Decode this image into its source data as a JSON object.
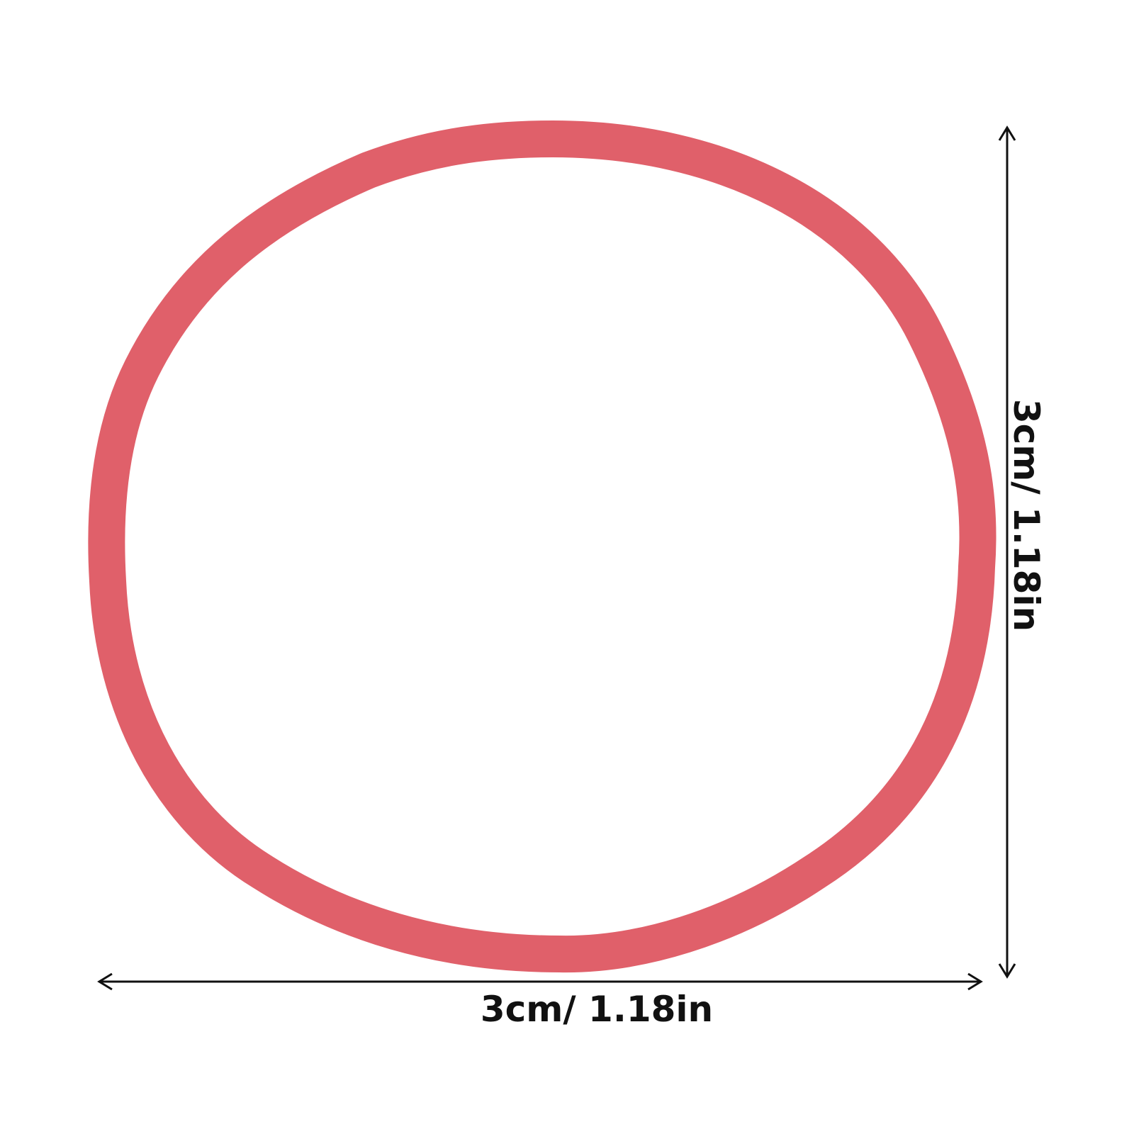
{
  "product": {
    "name": "rubber band",
    "color": "#e0606a"
  },
  "dimensions": {
    "width_label": "3cm/ 1.18in",
    "height_label": "3cm/ 1.18in"
  },
  "arrow_color": "#111111"
}
